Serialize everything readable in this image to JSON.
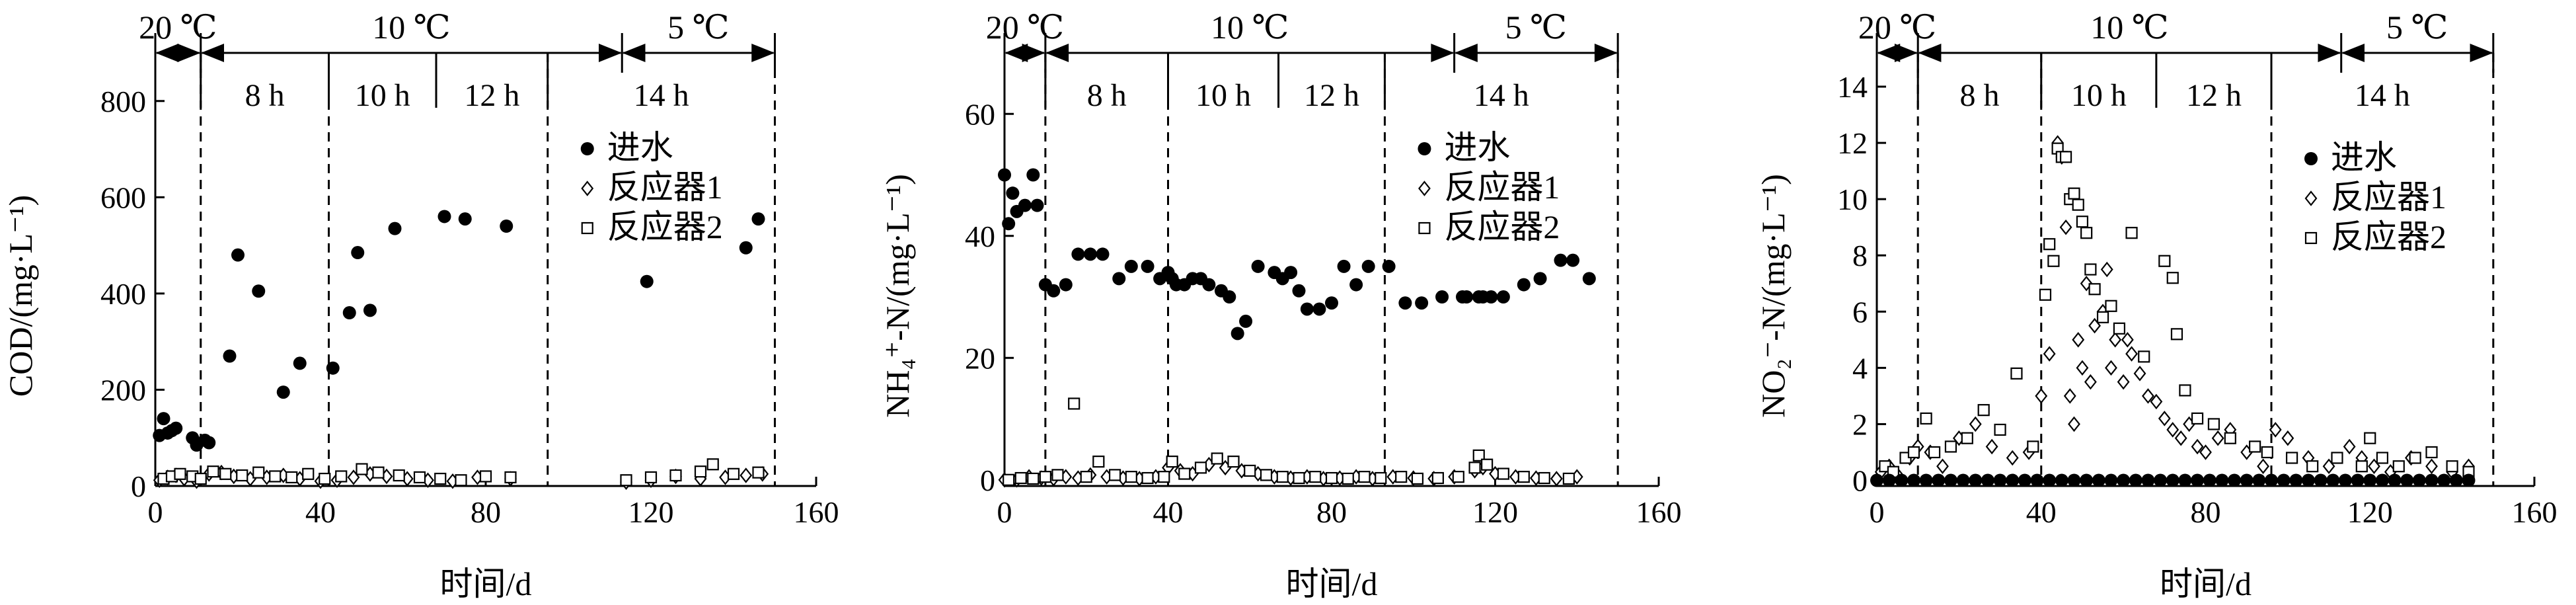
{
  "chart_data": [
    {
      "type": "scatter",
      "ylabel": "COD/(mg·L⁻¹)",
      "xlabel": "时间/d",
      "xlim": [
        0,
        160
      ],
      "ylim": [
        0,
        900
      ],
      "xticks": [
        0,
        40,
        80,
        120,
        160
      ],
      "yticks": [
        0,
        200,
        400,
        600,
        800
      ],
      "legend_position": "right-center",
      "phase_boundaries": [
        11,
        42,
        95
      ],
      "temperature_periods": [
        {
          "label": "20 ℃",
          "start": 0,
          "end": 11
        },
        {
          "label": "10 ℃",
          "start": 11,
          "end": 113
        },
        {
          "label": "5 ℃",
          "start": 113,
          "end": 150
        }
      ],
      "hrt_boundaries": [
        11,
        42,
        68,
        95,
        150
      ],
      "hrt_periods": [
        {
          "label": "8 h",
          "start": 11,
          "end": 42
        },
        {
          "label": "10 h",
          "start": 42,
          "end": 68
        },
        {
          "label": "12 h",
          "start": 68,
          "end": 95
        },
        {
          "label": "14 h",
          "start": 95,
          "end": 150
        }
      ],
      "series": [
        {
          "name": "进水",
          "marker": "filled-circle",
          "x": [
            1,
            2,
            3,
            4,
            5,
            9,
            10,
            12,
            13,
            18,
            20,
            25,
            31,
            35,
            43,
            47,
            49,
            52,
            58,
            70,
            75,
            85,
            119,
            143,
            146
          ],
          "y": [
            105,
            140,
            110,
            115,
            120,
            100,
            85,
            95,
            90,
            270,
            480,
            405,
            195,
            255,
            245,
            360,
            485,
            365,
            535,
            560,
            555,
            540,
            425,
            495,
            555
          ]
        },
        {
          "name": "反应器1",
          "marker": "open-diamond",
          "x": [
            1,
            3,
            5,
            7,
            10,
            13,
            16,
            19,
            23,
            27,
            31,
            35,
            40,
            44,
            48,
            52,
            56,
            61,
            66,
            72,
            78,
            86,
            114,
            120,
            126,
            132,
            138,
            143,
            147
          ],
          "y": [
            12,
            18,
            22,
            15,
            10,
            25,
            28,
            20,
            15,
            18,
            22,
            15,
            10,
            12,
            18,
            25,
            20,
            15,
            12,
            10,
            18,
            15,
            8,
            12,
            20,
            15,
            18,
            22,
            25
          ]
        },
        {
          "name": "反应器2",
          "marker": "open-square",
          "x": [
            2,
            4,
            6,
            9,
            11,
            14,
            17,
            21,
            25,
            29,
            33,
            37,
            41,
            45,
            50,
            54,
            59,
            64,
            69,
            74,
            80,
            86,
            114,
            120,
            126,
            132,
            135,
            140,
            146
          ],
          "y": [
            15,
            20,
            25,
            20,
            15,
            30,
            25,
            22,
            28,
            20,
            18,
            25,
            15,
            20,
            35,
            28,
            22,
            18,
            15,
            12,
            20,
            18,
            12,
            18,
            22,
            30,
            45,
            25,
            28
          ]
        }
      ]
    },
    {
      "type": "scatter",
      "ylabel": "NH₄⁺-N/(mg·L⁻¹)",
      "xlabel": "时间/d",
      "xlim": [
        0,
        160
      ],
      "ylim": [
        -1,
        70
      ],
      "xticks": [
        0,
        40,
        80,
        120,
        160
      ],
      "yticks": [
        0,
        20,
        40,
        60
      ],
      "legend_position": "right-center",
      "phase_boundaries": [
        10,
        40,
        93
      ],
      "temperature_periods": [
        {
          "label": "20 ℃",
          "start": 0,
          "end": 10
        },
        {
          "label": "10 ℃",
          "start": 10,
          "end": 110
        },
        {
          "label": "5 ℃",
          "start": 110,
          "end": 150
        }
      ],
      "hrt_boundaries": [
        10,
        40,
        67,
        93,
        150
      ],
      "hrt_periods": [
        {
          "label": "8 h",
          "start": 10,
          "end": 40
        },
        {
          "label": "10 h",
          "start": 40,
          "end": 67
        },
        {
          "label": "12 h",
          "start": 67,
          "end": 93
        },
        {
          "label": "14 h",
          "start": 93,
          "end": 150
        }
      ],
      "series": [
        {
          "name": "进水",
          "marker": "filled-circle",
          "x": [
            0,
            1,
            2,
            3,
            5,
            7,
            8,
            10,
            12,
            15,
            18,
            21,
            24,
            28,
            31,
            35,
            38,
            40,
            41,
            42,
            44,
            46,
            48,
            50,
            53,
            55,
            57,
            59,
            62,
            66,
            68,
            70,
            72,
            74,
            77,
            80,
            83,
            86,
            89,
            94,
            98,
            102,
            107,
            112,
            113,
            116,
            117,
            119,
            122,
            127,
            131,
            136,
            139,
            143
          ],
          "y": [
            50,
            42,
            47,
            44,
            45,
            50,
            45,
            32,
            31,
            32,
            37,
            37,
            37,
            33,
            35,
            35,
            33,
            34,
            33,
            32,
            32,
            33,
            33,
            32,
            31,
            30,
            24,
            26,
            35,
            34,
            33,
            34,
            31,
            28,
            28,
            29,
            35,
            32,
            35,
            35,
            29,
            29,
            30,
            30,
            30,
            30,
            30,
            30,
            30,
            32,
            33,
            36,
            36,
            33
          ]
        },
        {
          "name": "反应器1",
          "marker": "open-diamond",
          "x": [
            0,
            3,
            6,
            9,
            12,
            15,
            18,
            21,
            25,
            29,
            33,
            37,
            40,
            43,
            46,
            50,
            54,
            58,
            62,
            66,
            70,
            74,
            78,
            82,
            86,
            90,
            95,
            100,
            105,
            110,
            115,
            117,
            120,
            125,
            130,
            135,
            140
          ],
          "y": [
            0,
            0,
            0.5,
            0.3,
            0.2,
            0.5,
            0.3,
            0.8,
            0.5,
            0.3,
            0.2,
            0.5,
            2,
            1.5,
            1,
            2.5,
            2,
            1.5,
            1,
            0.5,
            0.3,
            0.5,
            0.2,
            0.3,
            0.5,
            0.2,
            0.5,
            0.3,
            0.2,
            0.5,
            1.5,
            2,
            1,
            0.5,
            0.3,
            0.2,
            0.5
          ]
        },
        {
          "name": "反应器2",
          "marker": "open-square",
          "x": [
            1,
            4,
            7,
            10,
            13,
            17,
            20,
            23,
            27,
            31,
            35,
            39,
            41,
            44,
            48,
            52,
            56,
            60,
            64,
            68,
            72,
            76,
            80,
            84,
            88,
            92,
            97,
            101,
            106,
            111,
            115,
            116,
            118,
            122,
            127,
            132,
            138
          ],
          "y": [
            0,
            0.3,
            0.2,
            0.5,
            0.8,
            12.5,
            0.5,
            3,
            0.8,
            0.5,
            0.3,
            0.5,
            3,
            1,
            2,
            3.5,
            3,
            1.5,
            0.8,
            0.5,
            0.3,
            0.5,
            0.3,
            0.2,
            0.5,
            0.3,
            0.5,
            0.2,
            0.3,
            0.5,
            2,
            4,
            2.5,
            1,
            0.5,
            0.3,
            0.2
          ]
        }
      ]
    },
    {
      "type": "scatter",
      "ylabel": "NO₂⁻-N/(mg·L⁻¹)",
      "xlabel": "时间/d",
      "xlim": [
        0,
        160
      ],
      "ylim": [
        -0.2,
        15.2
      ],
      "xticks": [
        0,
        40,
        80,
        120,
        160
      ],
      "yticks": [
        0,
        2,
        4,
        6,
        8,
        10,
        12,
        14
      ],
      "legend_position": "right-center",
      "phase_boundaries": [
        10,
        40,
        96
      ],
      "temperature_periods": [
        {
          "label": "20 ℃",
          "start": 0,
          "end": 10
        },
        {
          "label": "10 ℃",
          "start": 10,
          "end": 113
        },
        {
          "label": "5 ℃",
          "start": 113,
          "end": 150
        }
      ],
      "hrt_boundaries": [
        10,
        40,
        68,
        96,
        150
      ],
      "hrt_periods": [
        {
          "label": "8 h",
          "start": 10,
          "end": 40
        },
        {
          "label": "10 h",
          "start": 40,
          "end": 68
        },
        {
          "label": "12 h",
          "start": 68,
          "end": 96
        },
        {
          "label": "14 h",
          "start": 96,
          "end": 150
        }
      ],
      "series": [
        {
          "name": "进水",
          "marker": "filled-circle",
          "x": [
            0,
            3,
            6,
            9,
            12,
            15,
            18,
            21,
            24,
            27,
            30,
            33,
            36,
            39,
            42,
            45,
            48,
            51,
            54,
            57,
            60,
            63,
            66,
            69,
            72,
            75,
            78,
            81,
            84,
            87,
            90,
            93,
            96,
            99,
            102,
            105,
            108,
            111,
            114,
            117,
            120,
            123,
            126,
            129,
            132,
            135,
            138,
            141,
            144
          ],
          "y": [
            0,
            0,
            0,
            0,
            0,
            0,
            0,
            0,
            0,
            0,
            0,
            0,
            0,
            0,
            0,
            0,
            0,
            0,
            0,
            0,
            0,
            0,
            0,
            0,
            0,
            0,
            0,
            0,
            0,
            0,
            0,
            0,
            0,
            0,
            0,
            0,
            0,
            0,
            0,
            0,
            0,
            0,
            0,
            0,
            0,
            0,
            0,
            0,
            0
          ]
        },
        {
          "name": "反应器1",
          "marker": "open-diamond",
          "x": [
            1,
            3,
            5,
            8,
            10,
            13,
            16,
            20,
            24,
            28,
            33,
            37,
            40,
            42,
            44,
            45,
            46,
            47,
            48,
            49,
            50,
            51,
            52,
            53,
            55,
            56,
            57,
            58,
            60,
            61,
            62,
            64,
            66,
            68,
            70,
            72,
            74,
            76,
            78,
            80,
            83,
            86,
            90,
            94,
            97,
            100,
            105,
            110,
            115,
            118,
            121,
            125,
            130,
            135,
            140,
            144
          ],
          "y": [
            0.3,
            0.5,
            0.2,
            0.8,
            1.2,
            1,
            0.5,
            1.5,
            2,
            1.2,
            0.8,
            1,
            3,
            4.5,
            12,
            11.5,
            9,
            3,
            2,
            5,
            4,
            7,
            3.5,
            5.5,
            6,
            7.5,
            4,
            5,
            3.5,
            5,
            4.5,
            3.8,
            3,
            2.8,
            2.2,
            1.8,
            1.5,
            2,
            1.2,
            1,
            1.5,
            1.8,
            1,
            0.5,
            1.8,
            1.5,
            0.8,
            0.5,
            1.2,
            0.8,
            0.5,
            0.3,
            0.8,
            0.5,
            0.3,
            0.5
          ]
        },
        {
          "name": "反应器2",
          "marker": "open-square",
          "x": [
            2,
            4,
            7,
            9,
            12,
            14,
            18,
            22,
            26,
            30,
            34,
            38,
            41,
            42,
            43,
            44,
            45,
            46,
            47,
            48,
            49,
            50,
            51,
            52,
            53,
            55,
            57,
            59,
            62,
            65,
            70,
            72,
            73,
            75,
            78,
            82,
            86,
            92,
            95,
            101,
            106,
            112,
            118,
            120,
            123,
            127,
            131,
            135,
            140,
            144
          ],
          "y": [
            0.5,
            0.3,
            0.8,
            1,
            2.2,
            1,
            1.2,
            1.5,
            2.5,
            1.8,
            3.8,
            1.2,
            6.6,
            8.4,
            7.8,
            11.8,
            11.5,
            11.5,
            10,
            10.2,
            9.8,
            9.2,
            8.8,
            7.5,
            6.8,
            5.8,
            6.2,
            5.4,
            8.8,
            4.4,
            7.8,
            7.2,
            5.2,
            3.2,
            2.2,
            2,
            1.5,
            1.2,
            1,
            0.8,
            0.5,
            0.8,
            0.5,
            1.5,
            0.8,
            0.5,
            0.8,
            1,
            0.5,
            0.3
          ]
        }
      ]
    }
  ]
}
